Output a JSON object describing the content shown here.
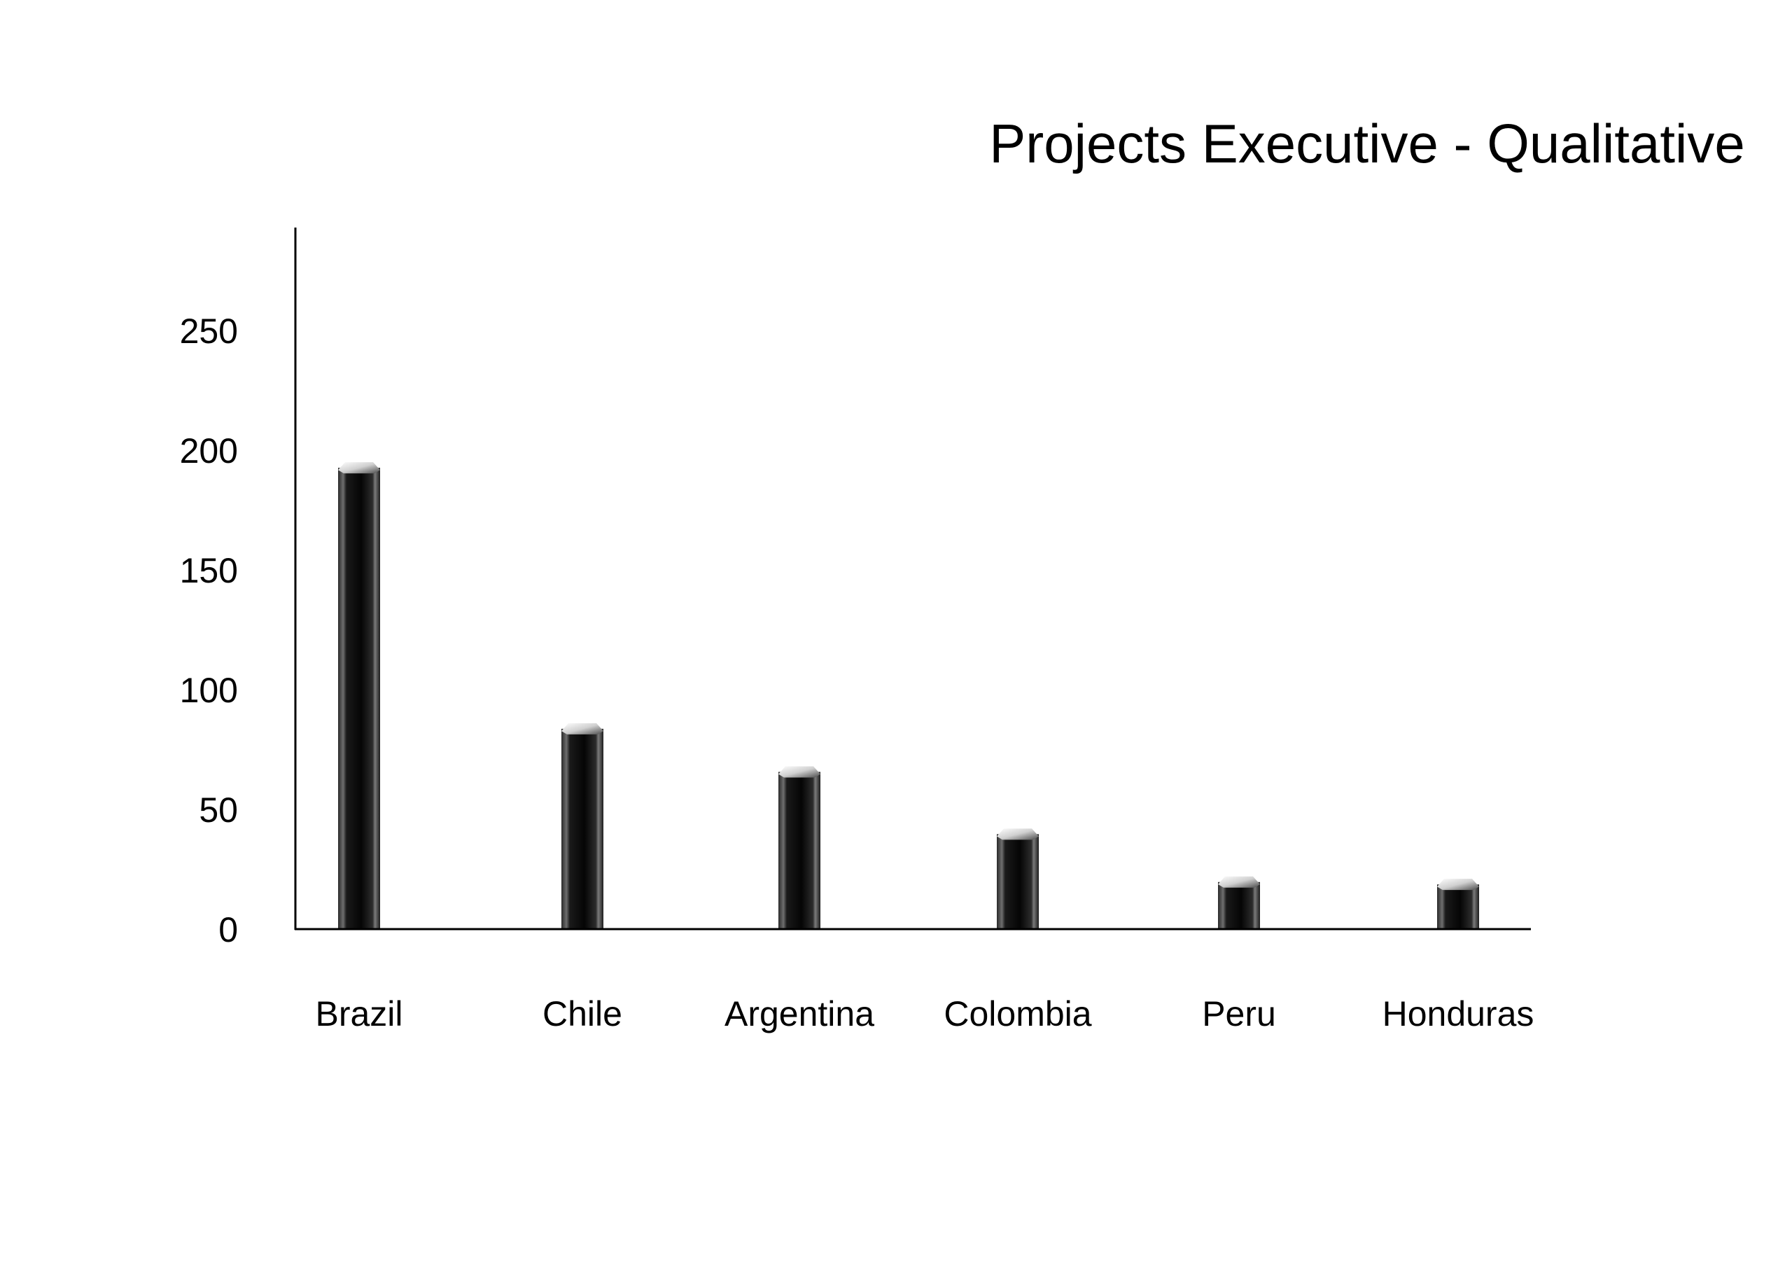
{
  "chart_data": {
    "type": "bar",
    "title": "Projects Executive - Qualitative",
    "xlabel": "",
    "ylabel": "",
    "categories": [
      "Brazil",
      "Chile",
      "Argentina",
      "Colombia",
      "Peru",
      "Honduras"
    ],
    "values": [
      195,
      86,
      68,
      42,
      22,
      21
    ],
    "ylim": [
      0,
      280
    ],
    "yticks": [
      "0",
      "50",
      "100",
      "150",
      "200",
      "250"
    ],
    "ytick_values": [
      0,
      50,
      100,
      150,
      200,
      250
    ],
    "grid": false,
    "legend": "none",
    "bar_style": "3d-cylinder",
    "colors": {
      "bar_dark": "#0a0a0a",
      "bar_mid": "#3a3a3a",
      "bar_highlight": "#8a8a8a",
      "cap_light": "#f2f2f2",
      "cap_dark": "#555555",
      "axis": "#000000",
      "text": "#000000",
      "background": "#ffffff"
    }
  }
}
